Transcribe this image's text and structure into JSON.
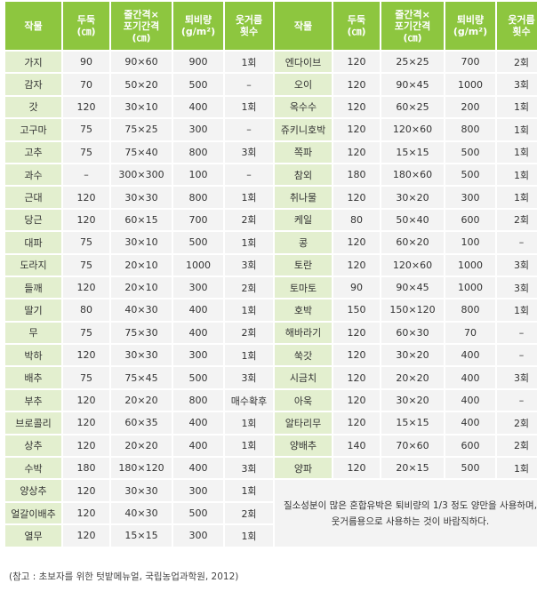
{
  "headers": [
    [
      "작물"
    ],
    [
      "두둑",
      "(㎝)"
    ],
    [
      "줄간격×",
      "포기간격",
      "(㎝)"
    ],
    [
      "퇴비량",
      "(g/m²)"
    ],
    [
      "웃거름",
      "횟수"
    ],
    [
      "작물"
    ],
    [
      "두둑",
      "(㎝)"
    ],
    [
      "줄간격×",
      "포기간격",
      "(㎝)"
    ],
    [
      "퇴비량",
      "(g/m²)"
    ],
    [
      "웃거름",
      "횟수"
    ]
  ],
  "left_rows": [
    [
      "가지",
      "90",
      "90×60",
      "900",
      "1회"
    ],
    [
      "감자",
      "70",
      "50×20",
      "500",
      "–"
    ],
    [
      "갓",
      "120",
      "30×10",
      "400",
      "1회"
    ],
    [
      "고구마",
      "75",
      "75×25",
      "300",
      "–"
    ],
    [
      "고추",
      "75",
      "75×40",
      "800",
      "3회"
    ],
    [
      "과수",
      "–",
      "300×300",
      "100",
      "–"
    ],
    [
      "근대",
      "120",
      "30×30",
      "800",
      "1회"
    ],
    [
      "당근",
      "120",
      "60×15",
      "700",
      "2회"
    ],
    [
      "대파",
      "75",
      "30×10",
      "500",
      "1회"
    ],
    [
      "도라지",
      "75",
      "20×10",
      "1000",
      "3회"
    ],
    [
      "들깨",
      "120",
      "20×10",
      "300",
      "2회"
    ],
    [
      "딸기",
      "80",
      "40×30",
      "400",
      "1회"
    ],
    [
      "무",
      "75",
      "75×30",
      "400",
      "2회"
    ],
    [
      "박하",
      "120",
      "30×30",
      "300",
      "1회"
    ],
    [
      "배추",
      "75",
      "75×45",
      "500",
      "3회"
    ],
    [
      "부추",
      "120",
      "20×20",
      "800",
      "매수확후"
    ],
    [
      "브로콜리",
      "120",
      "60×35",
      "400",
      "1회"
    ],
    [
      "상추",
      "120",
      "20×20",
      "400",
      "1회"
    ],
    [
      "수박",
      "180",
      "180×120",
      "400",
      "3회"
    ],
    [
      "양상추",
      "120",
      "30×30",
      "300",
      "1회"
    ],
    [
      "얼갈이배추",
      "120",
      "40×30",
      "500",
      "2회"
    ],
    [
      "열무",
      "120",
      "15×15",
      "300",
      "1회"
    ]
  ],
  "right_rows": [
    [
      "엔다이브",
      "120",
      "25×25",
      "700",
      "2회"
    ],
    [
      "오이",
      "120",
      "90×45",
      "1000",
      "3회"
    ],
    [
      "옥수수",
      "120",
      "60×25",
      "200",
      "1회"
    ],
    [
      "쥬키니호박",
      "120",
      "120×60",
      "800",
      "1회"
    ],
    [
      "쪽파",
      "120",
      "15×15",
      "500",
      "1회"
    ],
    [
      "참외",
      "180",
      "180×60",
      "500",
      "1회"
    ],
    [
      "취나물",
      "120",
      "30×20",
      "300",
      "1회"
    ],
    [
      "케일",
      "80",
      "50×40",
      "600",
      "2회"
    ],
    [
      "콩",
      "120",
      "60×20",
      "100",
      "–"
    ],
    [
      "토란",
      "120",
      "120×60",
      "1000",
      "3회"
    ],
    [
      "토마토",
      "90",
      "90×45",
      "1000",
      "3회"
    ],
    [
      "호박",
      "150",
      "150×120",
      "800",
      "1회"
    ],
    [
      "해바라기",
      "120",
      "60×30",
      "70",
      "–"
    ],
    [
      "쑥갓",
      "120",
      "30×20",
      "400",
      "–"
    ],
    [
      "시금치",
      "120",
      "20×20",
      "400",
      "3회"
    ],
    [
      "아욱",
      "120",
      "30×20",
      "400",
      "–"
    ],
    [
      "알타리무",
      "120",
      "15×15",
      "400",
      "2회"
    ],
    [
      "양배추",
      "140",
      "70×60",
      "600",
      "2회"
    ],
    [
      "양파",
      "120",
      "20×15",
      "500",
      "1회"
    ]
  ],
  "note": "질소성분이 많은 혼합유박은 퇴비량의 1/3 정도 양만을 사용하며, 웃거름용으로 사용하는 것이 바람직하다.",
  "source": "(참고 : 초보자를 위한 텃밭메뉴얼, 국립농업과학원, 2012)",
  "colors": {
    "header_bg": "#8dc63f",
    "name_cell_bg": "#e3efcf",
    "value_cell_bg": "#f3f3f3"
  }
}
